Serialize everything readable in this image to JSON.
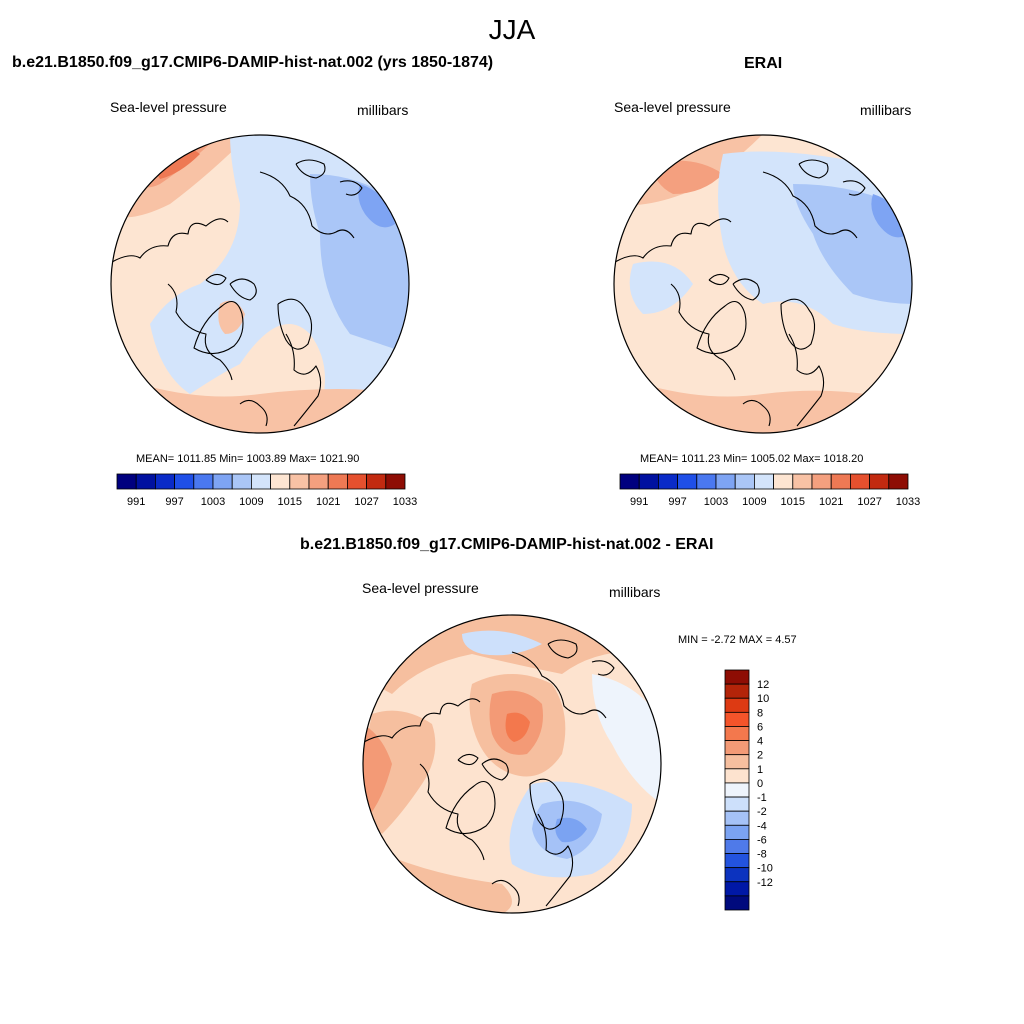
{
  "figure": {
    "title": "JJA"
  },
  "panels": [
    {
      "title": "b.e21.B1850.f09_g17.CMIP6-DAMIP-hist-nat.002 (yrs 1850-1874)",
      "left_label": "Sea-level pressure",
      "right_label": "millibars",
      "stats": "MEAN= 1011.85  Min= 1003.89  Max= 1021.90",
      "colorbar_ticks": [
        "991",
        "997",
        "1003",
        "1009",
        "1015",
        "1021",
        "1027",
        "1033"
      ]
    },
    {
      "title": "ERAI",
      "left_label": "Sea-level pressure",
      "right_label": "millibars",
      "stats": "MEAN= 1011.23  Min= 1005.02  Max= 1018.20",
      "colorbar_ticks": [
        "991",
        "997",
        "1003",
        "1009",
        "1015",
        "1021",
        "1027",
        "1033"
      ]
    },
    {
      "title": "b.e21.B1850.f09_g17.CMIP6-DAMIP-hist-nat.002 - ERAI",
      "left_label": "Sea-level pressure",
      "right_label": "millibars",
      "stats": "MIN =  -2.72 MAX =   4.57",
      "colorbar_ticks": [
        "12",
        "10",
        "8",
        "6",
        "4",
        "2",
        "1",
        "0",
        "-1",
        "-2",
        "-4",
        "-6",
        "-8",
        "-10",
        "-12"
      ]
    }
  ],
  "colors": {
    "abs_scale": [
      "#00007f",
      "#0011a0",
      "#0a2bc8",
      "#1f4fe8",
      "#4a78f0",
      "#7ea4f3",
      "#aac6f7",
      "#d3e4fb",
      "#fde5d2",
      "#f8c2a5",
      "#f4a07f",
      "#ee7954",
      "#e5502e",
      "#c22a10",
      "#8e0d04"
    ],
    "diff_scale": [
      "#8e0d04",
      "#b32409",
      "#dd3a13",
      "#f4542a",
      "#f3784d",
      "#f39a76",
      "#f6bf9f",
      "#fde3cf",
      "#eef4fc",
      "#cde0fb",
      "#a5c2f7",
      "#7ba3f2",
      "#4f7ae9",
      "#2353de",
      "#0c33bf",
      "#0018a6",
      "#000a7d"
    ]
  }
}
